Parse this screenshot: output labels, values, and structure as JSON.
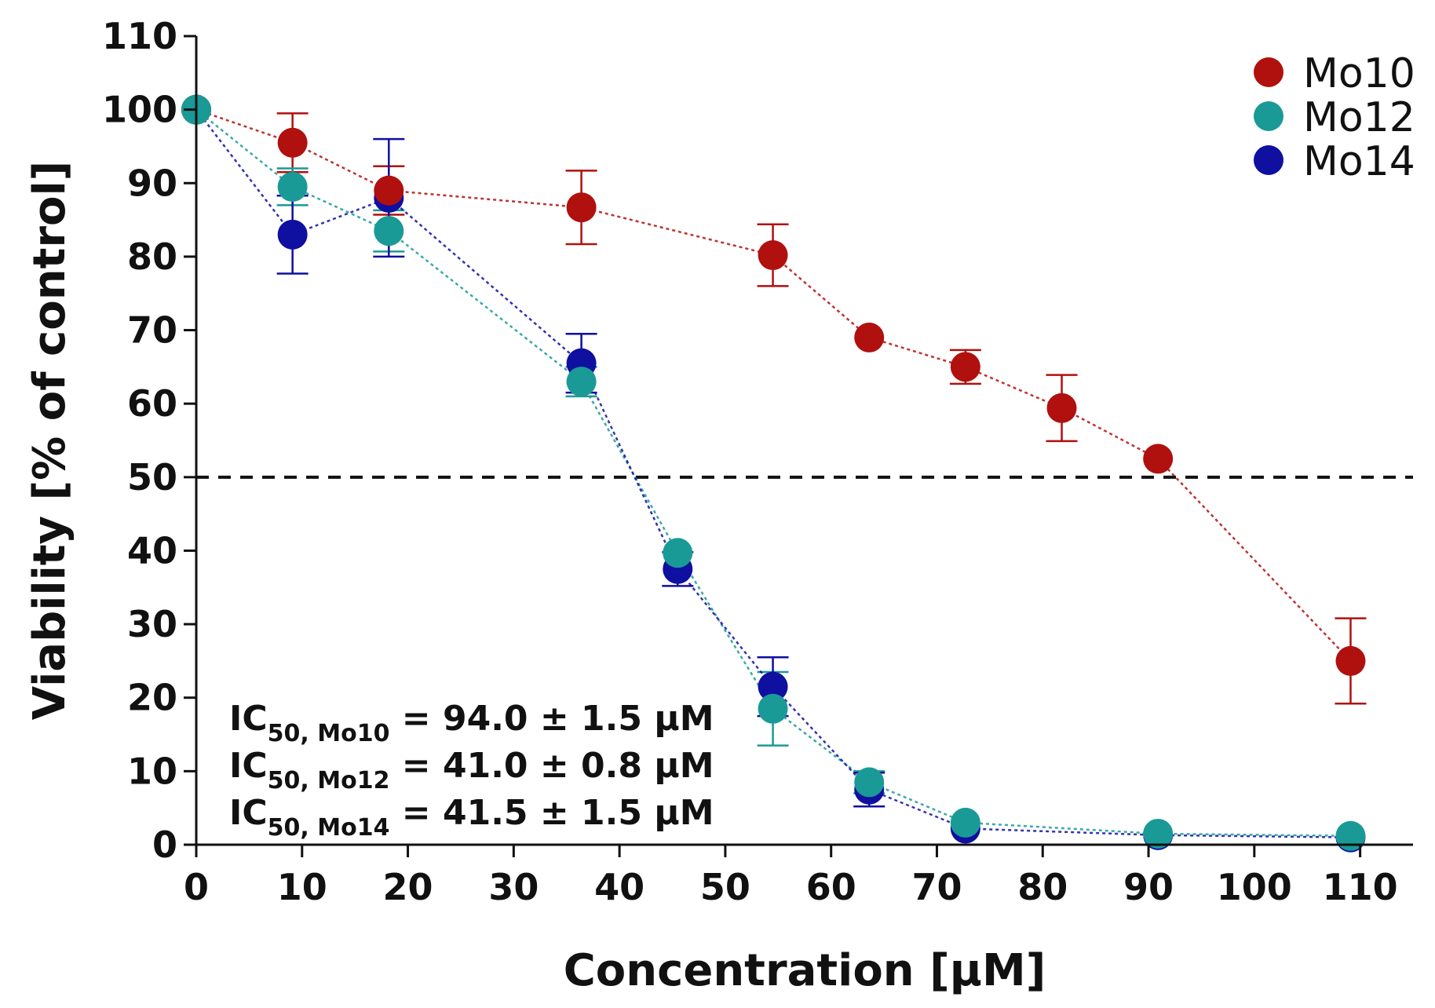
{
  "chart_data": {
    "type": "line",
    "title": "",
    "xlabel": "Concentration [μM]",
    "ylabel": "Viability [% of control]",
    "xlim": [
      0,
      115
    ],
    "ylim": [
      0,
      110
    ],
    "xticks": [
      0,
      10,
      20,
      30,
      40,
      50,
      60,
      70,
      80,
      90,
      100,
      110
    ],
    "yticks": [
      0,
      10,
      20,
      30,
      40,
      50,
      60,
      70,
      80,
      90,
      100,
      110
    ],
    "grid": false,
    "legend_position": "top-right",
    "reference_line": {
      "y": 50,
      "style": "dashed"
    },
    "series": [
      {
        "name": "Mo10",
        "color": "#b0100e",
        "x": [
          0,
          9.1,
          18.2,
          36.4,
          54.5,
          63.6,
          72.7,
          81.8,
          90.9,
          109.1
        ],
        "y": [
          100,
          95.5,
          89,
          86.7,
          80.2,
          69,
          65,
          59.4,
          52.5,
          25
        ],
        "err": [
          0,
          4,
          3.3,
          5,
          4.2,
          0,
          2.3,
          4.5,
          0,
          5.8
        ]
      },
      {
        "name": "Mo12",
        "color": "#1a9a96",
        "x": [
          0,
          9.1,
          18.2,
          36.4,
          45.5,
          54.5,
          63.6,
          72.7,
          90.9,
          109.1
        ],
        "y": [
          100,
          89.5,
          83.5,
          63,
          39.7,
          18.5,
          8.5,
          3,
          1.5,
          1.2
        ],
        "err": [
          0,
          2.5,
          2.8,
          2,
          0,
          5,
          1.5,
          0,
          0,
          0
        ]
      },
      {
        "name": "Mo14",
        "color": "#0f0fa0",
        "x": [
          0,
          9.1,
          18.2,
          36.4,
          45.5,
          54.5,
          63.6,
          72.7,
          90.9,
          109.1
        ],
        "y": [
          100,
          83,
          88,
          65.5,
          37.5,
          21.5,
          7.5,
          2.2,
          1.3,
          1
        ],
        "err": [
          0,
          5.3,
          8,
          4,
          2.3,
          4,
          2.3,
          0,
          0,
          0
        ]
      }
    ],
    "annotations": [
      {
        "prefix": "IC",
        "sub": "50, Mo10",
        "text": " = 94.0 ± 1.5 μM"
      },
      {
        "prefix": "IC",
        "sub": "50, Mo12",
        "text": " = 41.0 ± 0.8 μM"
      },
      {
        "prefix": "IC",
        "sub": "50, Mo14",
        "text": " = 41.5 ± 1.5 μM"
      }
    ]
  }
}
